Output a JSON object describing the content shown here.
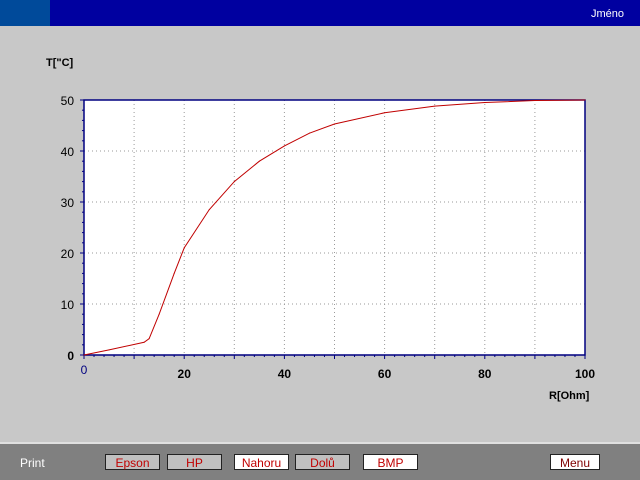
{
  "header": {
    "title": "Jméno"
  },
  "footer": {
    "print_label": "Print",
    "buttons": [
      {
        "label": "Epson",
        "color": "#c00000"
      },
      {
        "label": "HP",
        "color": "#c00000"
      },
      {
        "label": "Nahoru",
        "color": "#c00000"
      },
      {
        "label": "Dolů",
        "color": "#c00000"
      },
      {
        "label": "BMP",
        "color": "#c00000"
      },
      {
        "label": "Menu",
        "color": "#800000"
      }
    ]
  },
  "chart_data": {
    "type": "line",
    "xlabel": "R[Ohm]",
    "ylabel": "T[\"C]",
    "xlim": [
      0,
      100
    ],
    "ylim": [
      0,
      50
    ],
    "xticks": [
      "0",
      "20",
      "40",
      "60",
      "80",
      "100"
    ],
    "yticks": [
      "0",
      "10",
      "20",
      "30",
      "40",
      "50"
    ],
    "grid": true,
    "line_color": "#c00000",
    "x": [
      0,
      5,
      12,
      13,
      15,
      18,
      20,
      25,
      30,
      35,
      40,
      45,
      50,
      60,
      70,
      80,
      90,
      100
    ],
    "y": [
      0,
      1,
      2.5,
      3.2,
      8,
      16,
      21,
      28.5,
      34,
      38,
      41,
      43.5,
      45.3,
      47.5,
      48.8,
      49.5,
      49.9,
      50
    ]
  }
}
